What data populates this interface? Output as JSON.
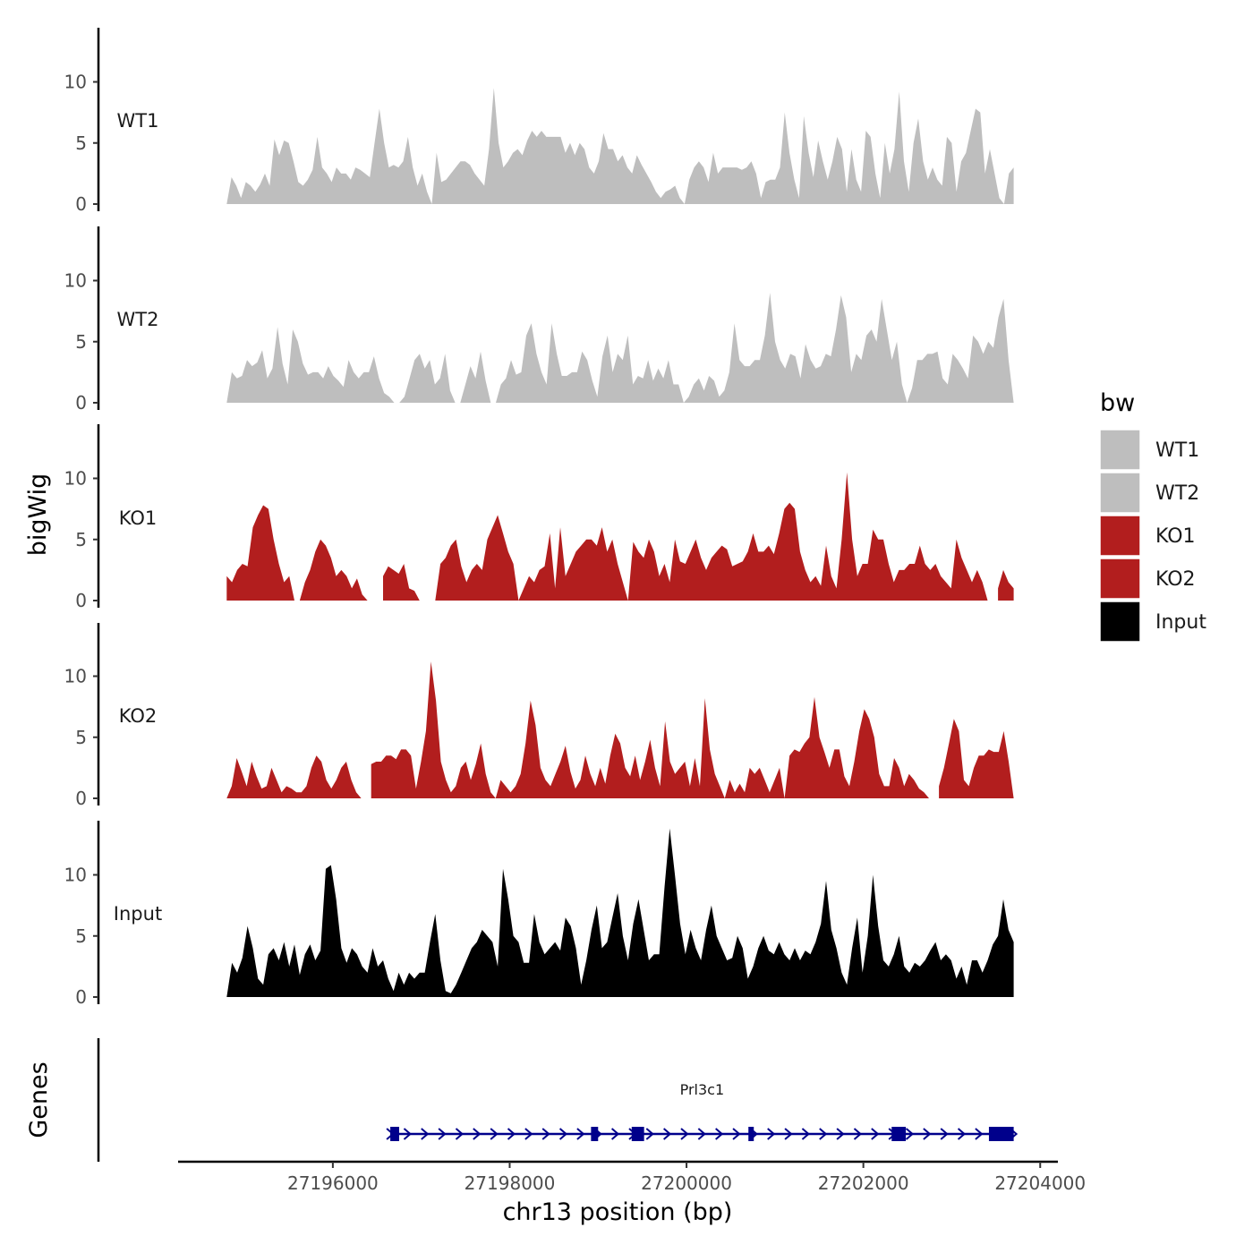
{
  "chart_data": {
    "type": "area",
    "title": "",
    "ylabel": "bigWig",
    "xlabel": "chr13 position (bp)",
    "gene_panel_label": "Genes",
    "xlim": [
      27194250,
      27204200
    ],
    "ylim": [
      0,
      14
    ],
    "y_ticks": [
      0,
      5,
      10
    ],
    "y_tick_labels": [
      "0",
      "5",
      "10"
    ],
    "x_ticks": [
      27196000,
      27198000,
      27200000,
      27202000,
      27204000
    ],
    "x_tick_labels": [
      "27196000",
      "27198000",
      "27200000",
      "27202000",
      "27204000"
    ],
    "x_start": 27194800,
    "x_end": 27203700,
    "legend": {
      "title": "bw",
      "position": "right",
      "entries": [
        {
          "label": "WT1",
          "color": "#bebebe"
        },
        {
          "label": "WT2",
          "color": "#bebebe"
        },
        {
          "label": "KO1",
          "color": "#b21e1e"
        },
        {
          "label": "KO2",
          "color": "#b21e1e"
        },
        {
          "label": "Input",
          "color": "#000000"
        }
      ]
    },
    "series": [
      {
        "name": "WT1",
        "color": "#bebebe",
        "values": [
          0,
          2.2,
          1.5,
          0.5,
          1.8,
          1.5,
          1,
          1.6,
          2.5,
          1.5,
          5.3,
          4,
          5.2,
          5,
          3.5,
          1.8,
          1.5,
          2,
          2.8,
          5.5,
          3,
          2.5,
          1.8,
          3,
          2.5,
          2.5,
          2,
          3,
          2.8,
          2.5,
          2.2,
          5,
          7.8,
          5,
          3,
          3.2,
          3,
          3.5,
          5.5,
          3,
          1.5,
          2.5,
          1,
          0,
          4.2,
          1.8,
          2,
          2.5,
          3,
          3.5,
          3.5,
          3.2,
          2.5,
          2,
          1.5,
          4.5,
          9.5,
          5,
          3,
          3.5,
          4.2,
          4.5,
          4,
          5.2,
          6,
          5.5,
          6,
          5.5,
          5.5,
          5.5,
          5.5,
          4.2,
          5,
          4,
          5,
          4.5,
          3,
          2.5,
          3.5,
          5.8,
          4.5,
          4.5,
          3.5,
          4,
          3,
          2.5,
          4,
          3.2,
          2.5,
          1.8,
          1,
          0.5,
          1,
          1.2,
          1.5,
          0.5,
          0,
          2,
          3,
          3.5,
          3,
          1.8,
          4.2,
          2.5,
          3,
          3,
          3,
          3,
          2.8,
          3,
          3.5,
          2.5,
          0.5,
          1.8,
          2,
          2,
          3,
          7.5,
          4.2,
          2,
          0.5,
          7.2,
          4.2,
          2.2,
          5.2,
          3.5,
          2,
          3.5,
          5.5,
          4.5,
          1,
          4.5,
          2,
          1,
          6,
          5.5,
          2.5,
          0.5,
          5,
          2.5,
          4.5,
          9.2,
          3.5,
          1,
          5,
          7,
          3.5,
          2,
          3,
          2,
          1.5,
          5.5,
          5,
          1,
          3.5,
          4.2,
          6,
          7.8,
          7.5,
          2.5,
          4.5,
          2.5,
          0.5,
          0,
          2.5,
          3
        ]
      },
      {
        "name": "WT2",
        "color": "#bebebe",
        "values": [
          0,
          2.5,
          2,
          2.2,
          3.5,
          3,
          3.3,
          4.3,
          2,
          2.8,
          6.2,
          3.2,
          1.5,
          6,
          5,
          3.2,
          2.3,
          2.5,
          2.5,
          2,
          3,
          2.2,
          1.8,
          1.3,
          3.5,
          2.5,
          2,
          2.5,
          2.5,
          3.8,
          2,
          0.8,
          0.5,
          0,
          0,
          0.5,
          2,
          3.5,
          4,
          2.8,
          3.5,
          1.5,
          2,
          4,
          1,
          0,
          0,
          1.5,
          3,
          2,
          4.2,
          1.8,
          0,
          0,
          1.5,
          2,
          3.5,
          2.3,
          2.5,
          5.5,
          6.5,
          4,
          2.5,
          1.5,
          6.5,
          4,
          2.2,
          2.2,
          2.5,
          2.5,
          4.2,
          3.5,
          1.8,
          0.5,
          3.8,
          5.5,
          2.5,
          4,
          3.5,
          5.5,
          1.5,
          2.2,
          2,
          3.5,
          1.8,
          2.8,
          2,
          3.5,
          1.5,
          1.5,
          0,
          0.5,
          1.5,
          2,
          1,
          2.2,
          1.8,
          0.5,
          1,
          2.5,
          6.5,
          3.5,
          3,
          3,
          3.5,
          3.5,
          5.5,
          9,
          5,
          3.5,
          2.8,
          4,
          3.8,
          2,
          4.8,
          3.5,
          2.8,
          3,
          4,
          3.8,
          6,
          8.8,
          7,
          2.5,
          4,
          3.5,
          5.5,
          6,
          5,
          8.5,
          6,
          3.5,
          5,
          1.5,
          0,
          1.2,
          3.5,
          3.5,
          4,
          4,
          4.2,
          2,
          1.5,
          4,
          3.5,
          2.8,
          2,
          5.5,
          5,
          4,
          5,
          4.5,
          7,
          8.5,
          3.5,
          0
        ]
      },
      {
        "name": "KO1",
        "color": "#b21e1e",
        "values": [
          2,
          1.5,
          2.5,
          3,
          2.8,
          6,
          7,
          7.8,
          7.5,
          5,
          3,
          1.5,
          2,
          0,
          0,
          1.5,
          2.5,
          4,
          5,
          4.5,
          3.5,
          2,
          2.5,
          2,
          1,
          1.8,
          0.5,
          0,
          null,
          null,
          2,
          2.8,
          2.5,
          2.2,
          3,
          1,
          0.8,
          0,
          null,
          null,
          0,
          3,
          3.5,
          4.5,
          5,
          2.8,
          1.5,
          2.5,
          3,
          2.5,
          5,
          6,
          7,
          5.5,
          4,
          3,
          0,
          1,
          2,
          1.5,
          2.5,
          2.8,
          5.5,
          1,
          6,
          2,
          3,
          4,
          4.5,
          5,
          5,
          4.5,
          6,
          4,
          5,
          3,
          1.5,
          0,
          4.8,
          4,
          3.5,
          5,
          4,
          2,
          3,
          1.5,
          5,
          3.2,
          3,
          4,
          5,
          3.5,
          2.5,
          3.5,
          4,
          4.5,
          4.2,
          2.8,
          3,
          3.2,
          4,
          5.5,
          4,
          4,
          4.5,
          3.8,
          5.5,
          7.5,
          8,
          7.5,
          4,
          2.5,
          1.5,
          2,
          1.2,
          4.5,
          2,
          1,
          5,
          10.5,
          5,
          2,
          3,
          3,
          5.8,
          5,
          5,
          3,
          1.5,
          2.5,
          2.5,
          3,
          3,
          4.5,
          3,
          2.5,
          3,
          2,
          1.5,
          1,
          5,
          3.5,
          2.5,
          1.5,
          2.5,
          1.5,
          0,
          null,
          1,
          2.5,
          1.5,
          1
        ]
      },
      {
        "name": "KO2",
        "color": "#b21e1e",
        "values": [
          0,
          1,
          3.3,
          2.2,
          1,
          3,
          1.8,
          0.8,
          1,
          2.5,
          1.5,
          0.5,
          1,
          0.8,
          0.5,
          0.5,
          1,
          2.5,
          3.5,
          3,
          1.5,
          0.8,
          1.5,
          2.5,
          3,
          1.5,
          0.5,
          0,
          null,
          2.8,
          3,
          3,
          3.5,
          3.5,
          3.2,
          4,
          4,
          3.5,
          0.8,
          3,
          5.5,
          11.2,
          8,
          3,
          1.5,
          0.5,
          1,
          2.5,
          3,
          1.5,
          2.8,
          4.5,
          2,
          0.5,
          0,
          1.5,
          1,
          0.5,
          1,
          2,
          4.5,
          8,
          6,
          2.5,
          1.5,
          1,
          2,
          3,
          4.3,
          2.2,
          0.8,
          1.5,
          3.5,
          2,
          1,
          2.5,
          1.2,
          3.5,
          5.3,
          4.5,
          2.5,
          1.8,
          3.5,
          1.5,
          3,
          4.8,
          2.5,
          1,
          6.3,
          3,
          2,
          2.5,
          3,
          1,
          3.3,
          1,
          8.2,
          4,
          2,
          1,
          0,
          1.5,
          0.5,
          1.2,
          0.5,
          2.5,
          2,
          2.5,
          1.5,
          0.5,
          1.5,
          2.5,
          0,
          3.5,
          4,
          3.8,
          4.5,
          5,
          8.3,
          5,
          3.8,
          2.5,
          4,
          4,
          1.8,
          1,
          3,
          5.5,
          7.3,
          6.5,
          5,
          2,
          1,
          1,
          3.3,
          2.5,
          1,
          2,
          1.5,
          0.8,
          0.5,
          0,
          null,
          1,
          2.5,
          4.5,
          6.5,
          5.5,
          1.5,
          1,
          2.5,
          3.5,
          3.5,
          4,
          3.8,
          3.8,
          5.5,
          3,
          0
        ]
      },
      {
        "name": "Input",
        "color": "#000000",
        "values": [
          0,
          2.8,
          2,
          3.2,
          5.8,
          4,
          1.5,
          1,
          3.5,
          4,
          3,
          4.5,
          2.5,
          4.3,
          1.8,
          3.5,
          4.3,
          3,
          3.8,
          10.5,
          10.8,
          8,
          4,
          2.8,
          4,
          3.5,
          2.5,
          2,
          4,
          2.5,
          3,
          1.5,
          0.5,
          2,
          1,
          2,
          1.5,
          2,
          2,
          4.5,
          6.8,
          3,
          0.5,
          0.3,
          1,
          2,
          3,
          4,
          4.5,
          5.5,
          5,
          4.5,
          2.5,
          10.5,
          8,
          5,
          4.5,
          2.8,
          2.8,
          6.8,
          4.5,
          3.5,
          4,
          4.5,
          3.8,
          6.5,
          5.8,
          4,
          1,
          3,
          5.5,
          7.5,
          4,
          4.5,
          6.5,
          8.5,
          5,
          3,
          6,
          8,
          5.5,
          3,
          3.5,
          3.5,
          9,
          13.8,
          10,
          6,
          3.5,
          5.5,
          4,
          3,
          5.5,
          7.5,
          5,
          4,
          3,
          3.2,
          5,
          4,
          1.5,
          2.5,
          4,
          5,
          3.8,
          3.5,
          4.5,
          3.5,
          3,
          4,
          3,
          3.8,
          3.5,
          4.5,
          6,
          9.5,
          5.5,
          4,
          2,
          1,
          4,
          6.5,
          2,
          5,
          10,
          5.8,
          3,
          2.5,
          3.5,
          5,
          2.5,
          2,
          2.8,
          2.5,
          3,
          3.8,
          4.5,
          3,
          3.5,
          3,
          1.5,
          2.5,
          1,
          3,
          3,
          2,
          3,
          4.3,
          5,
          8,
          5.5,
          4.5
        ]
      }
    ],
    "gene": {
      "name": "Prl3c1",
      "start": 27196650,
      "end": 27203700,
      "strand": "+",
      "exons": [
        {
          "start": 27196650,
          "end": 27196750
        },
        {
          "start": 27198920,
          "end": 27199000
        },
        {
          "start": 27199380,
          "end": 27199520
        },
        {
          "start": 27200700,
          "end": 27200760
        },
        {
          "start": 27202320,
          "end": 27202480
        },
        {
          "start": 27203420,
          "end": 27203700
        }
      ]
    }
  }
}
